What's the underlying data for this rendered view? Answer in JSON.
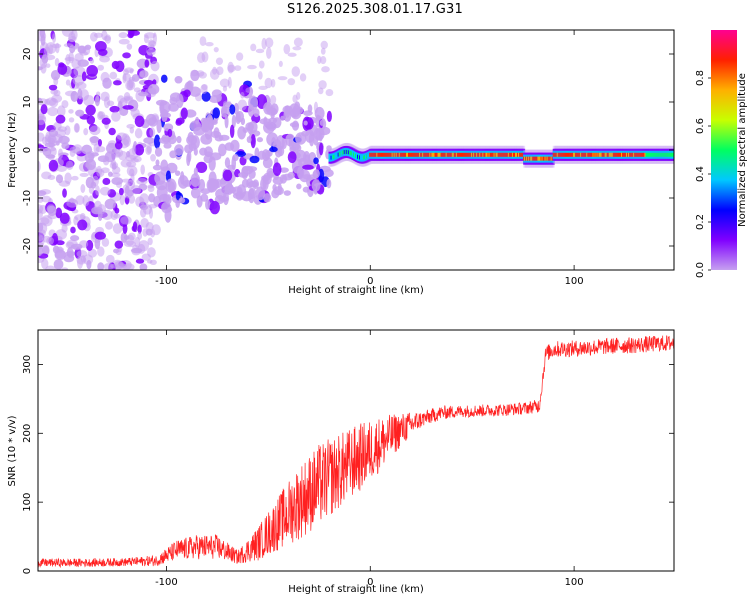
{
  "title": "S126.2025.308.01.17.G31",
  "chart_data": [
    {
      "type": "heatmap",
      "xlabel": "Height of straight line (km)",
      "ylabel": "Frequency (Hz)",
      "xlim": [
        -163,
        149
      ],
      "ylim": [
        -25,
        25
      ],
      "xticks": [
        -100,
        0,
        100
      ],
      "yticks": [
        -20,
        -10,
        0,
        10,
        20
      ],
      "xtick_labels": [
        "-100",
        "0",
        "100"
      ],
      "ytick_labels": [
        "-20",
        "-10",
        "0",
        "10",
        "20"
      ],
      "colorbar": {
        "label": "Normalized spectral amplitude",
        "range": [
          0,
          1
        ],
        "ticks": [
          0.0,
          0.2,
          0.4,
          0.6,
          0.8
        ],
        "tick_labels": [
          "0.0",
          "0.2",
          "0.4",
          "0.6",
          "0.8"
        ],
        "colors": [
          "#c6a0f0",
          "#8000ff",
          "#0000ff",
          "#00c8ff",
          "#00ff60",
          "#c8ff00",
          "#ffb000",
          "#ff2000",
          "#ff0090"
        ]
      },
      "description_regions": [
        {
          "x_range": [
            -163,
            -105
          ],
          "freq_range": [
            -25,
            25
          ],
          "pattern": "scattered noise",
          "amplitude": 0.15
        },
        {
          "x_range": [
            -105,
            -20
          ],
          "freq_range": [
            -12,
            12
          ],
          "pattern": "broadening signal blobs",
          "amplitude": 0.3
        },
        {
          "x_range": [
            -20,
            149
          ],
          "freq_center": -1,
          "pattern": "narrow carrier line",
          "amplitude": 0.9
        }
      ]
    },
    {
      "type": "line",
      "xlabel": "Height of straight line (km)",
      "ylabel": "SNR (10 * v/v)",
      "xlim": [
        -163,
        149
      ],
      "ylim": [
        0,
        350
      ],
      "xticks": [
        -100,
        0,
        100
      ],
      "yticks": [
        0,
        100,
        200,
        300
      ],
      "xtick_labels": [
        "-100",
        "0",
        "100"
      ],
      "ytick_labels": [
        "0",
        "100",
        "200",
        "300"
      ],
      "series": [
        {
          "name": "SNR",
          "color": "#ff2020",
          "x": [
            -163,
            -140,
            -120,
            -105,
            -95,
            -85,
            -75,
            -65,
            -55,
            -45,
            -35,
            -25,
            -15,
            -5,
            5,
            15,
            25,
            35,
            45,
            55,
            65,
            75,
            83,
            86,
            90,
            100,
            110,
            120,
            130,
            140,
            149
          ],
          "y": [
            12,
            12,
            13,
            15,
            30,
            35,
            35,
            20,
            40,
            70,
            100,
            125,
            145,
            165,
            185,
            205,
            220,
            230,
            232,
            233,
            234,
            236,
            240,
            315,
            322,
            323,
            325,
            327,
            328,
            330,
            331
          ],
          "noise": [
            6,
            6,
            6,
            8,
            15,
            18,
            18,
            10,
            25,
            40,
            55,
            60,
            55,
            50,
            40,
            25,
            12,
            10,
            9,
            9,
            9,
            9,
            10,
            12,
            12,
            12,
            12,
            12,
            12,
            12,
            12
          ]
        }
      ]
    }
  ]
}
